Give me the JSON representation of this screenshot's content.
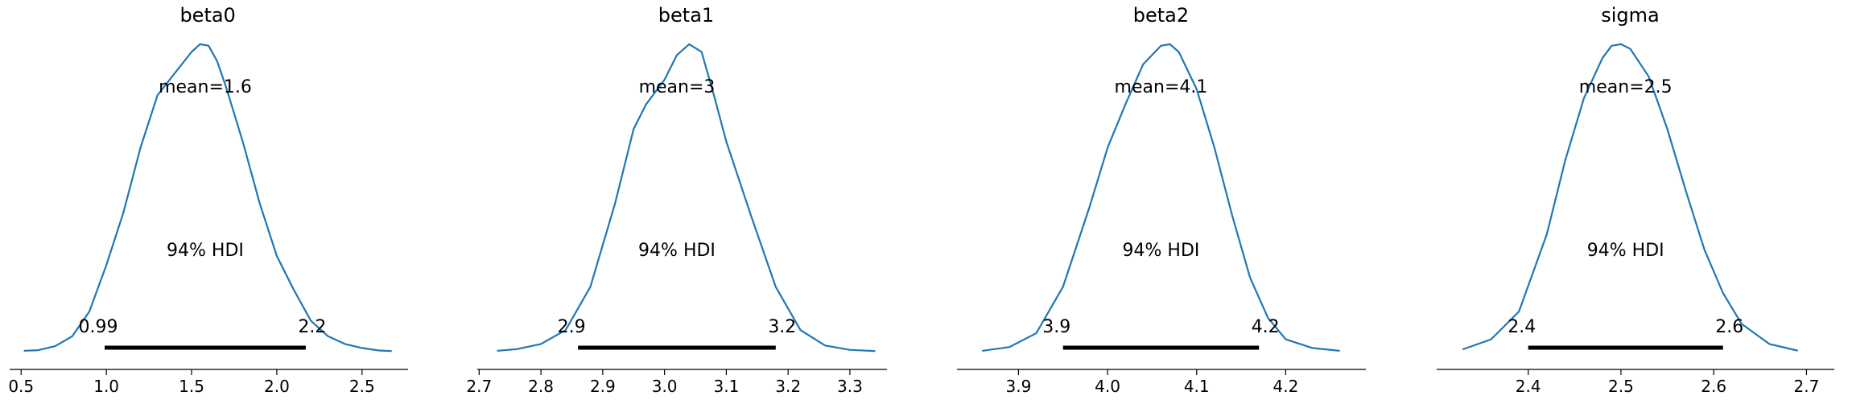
{
  "colors": {
    "curve": "#1f77b4",
    "hdi": "#000000",
    "axis": "#000000"
  },
  "chart_data": [
    {
      "type": "line",
      "title": "beta0",
      "mean_label": "mean=1.6",
      "hdi_label": "94% HDI",
      "hdi": [
        0.99,
        2.17
      ],
      "hdi_low_label": "0.99",
      "hdi_high_label": "2.2",
      "xlim": [
        0.48,
        2.77
      ],
      "xticks": [
        0.5,
        1.0,
        1.5,
        2.0,
        2.5
      ],
      "xtick_labels": [
        "0.5",
        "1.0",
        "1.5",
        "2.0",
        "2.5"
      ],
      "x": [
        0.52,
        0.6,
        0.7,
        0.8,
        0.9,
        1.0,
        1.1,
        1.2,
        1.3,
        1.4,
        1.5,
        1.55,
        1.6,
        1.65,
        1.7,
        1.8,
        1.9,
        2.0,
        2.1,
        2.2,
        2.3,
        2.4,
        2.5,
        2.6,
        2.67
      ],
      "y": [
        0.003,
        0.005,
        0.018,
        0.05,
        0.13,
        0.28,
        0.45,
        0.66,
        0.83,
        0.9,
        0.97,
        0.995,
        0.99,
        0.94,
        0.86,
        0.68,
        0.48,
        0.31,
        0.2,
        0.1,
        0.05,
        0.025,
        0.012,
        0.004,
        0.002
      ],
      "grid": false,
      "legend": "none"
    },
    {
      "type": "line",
      "title": "beta1",
      "mean_label": "mean=3",
      "hdi_label": "94% HDI",
      "hdi": [
        2.86,
        3.18
      ],
      "hdi_low_label": "2.9",
      "hdi_high_label": "3.2",
      "xlim": [
        2.71,
        3.36
      ],
      "xticks": [
        2.7,
        2.8,
        2.9,
        3.0,
        3.1,
        3.2,
        3.3
      ],
      "xtick_labels": [
        "2.7",
        "2.8",
        "2.9",
        "3.0",
        "3.1",
        "3.2",
        "3.3"
      ],
      "x": [
        2.73,
        2.76,
        2.8,
        2.84,
        2.88,
        2.92,
        2.95,
        2.97,
        3.0,
        3.02,
        3.04,
        3.06,
        3.08,
        3.1,
        3.14,
        3.18,
        3.22,
        3.26,
        3.3,
        3.34
      ],
      "y": [
        0.003,
        0.008,
        0.025,
        0.07,
        0.21,
        0.48,
        0.72,
        0.8,
        0.88,
        0.96,
        0.995,
        0.97,
        0.83,
        0.68,
        0.44,
        0.21,
        0.07,
        0.02,
        0.006,
        0.002
      ],
      "grid": false,
      "legend": "none"
    },
    {
      "type": "line",
      "title": "beta2",
      "mean_label": "mean=4.1",
      "hdi_label": "94% HDI",
      "hdi": [
        3.95,
        4.17
      ],
      "hdi_low_label": "3.9",
      "hdi_high_label": "4.2",
      "xlim": [
        3.84,
        4.29
      ],
      "xticks": [
        3.9,
        4.0,
        4.1,
        4.2
      ],
      "xtick_labels": [
        "3.9",
        "4.0",
        "4.1",
        "4.2"
      ],
      "x": [
        3.86,
        3.89,
        3.92,
        3.95,
        3.98,
        4.0,
        4.02,
        4.04,
        4.06,
        4.07,
        4.08,
        4.1,
        4.12,
        4.14,
        4.16,
        4.18,
        4.2,
        4.23,
        4.26
      ],
      "y": [
        0.003,
        0.015,
        0.06,
        0.21,
        0.47,
        0.66,
        0.8,
        0.93,
        0.99,
        0.995,
        0.97,
        0.85,
        0.66,
        0.44,
        0.24,
        0.11,
        0.04,
        0.012,
        0.003
      ],
      "grid": false,
      "legend": "none"
    },
    {
      "type": "line",
      "title": "sigma",
      "mean_label": "mean=2.5",
      "hdi_label": "94% HDI",
      "hdi": [
        2.4,
        2.61
      ],
      "hdi_low_label": "2.4",
      "hdi_high_label": "2.6",
      "xlim": [
        2.31,
        2.73
      ],
      "xticks": [
        2.4,
        2.5,
        2.6,
        2.7
      ],
      "xtick_labels": [
        "2.4",
        "2.5",
        "2.6",
        "2.7"
      ],
      "x": [
        2.33,
        2.36,
        2.39,
        2.42,
        2.44,
        2.46,
        2.48,
        2.49,
        2.5,
        2.51,
        2.53,
        2.55,
        2.57,
        2.59,
        2.61,
        2.63,
        2.66,
        2.69
      ],
      "y": [
        0.008,
        0.04,
        0.13,
        0.38,
        0.62,
        0.82,
        0.95,
        0.99,
        0.995,
        0.98,
        0.89,
        0.72,
        0.52,
        0.33,
        0.19,
        0.09,
        0.025,
        0.004
      ],
      "grid": false,
      "legend": "none"
    }
  ]
}
